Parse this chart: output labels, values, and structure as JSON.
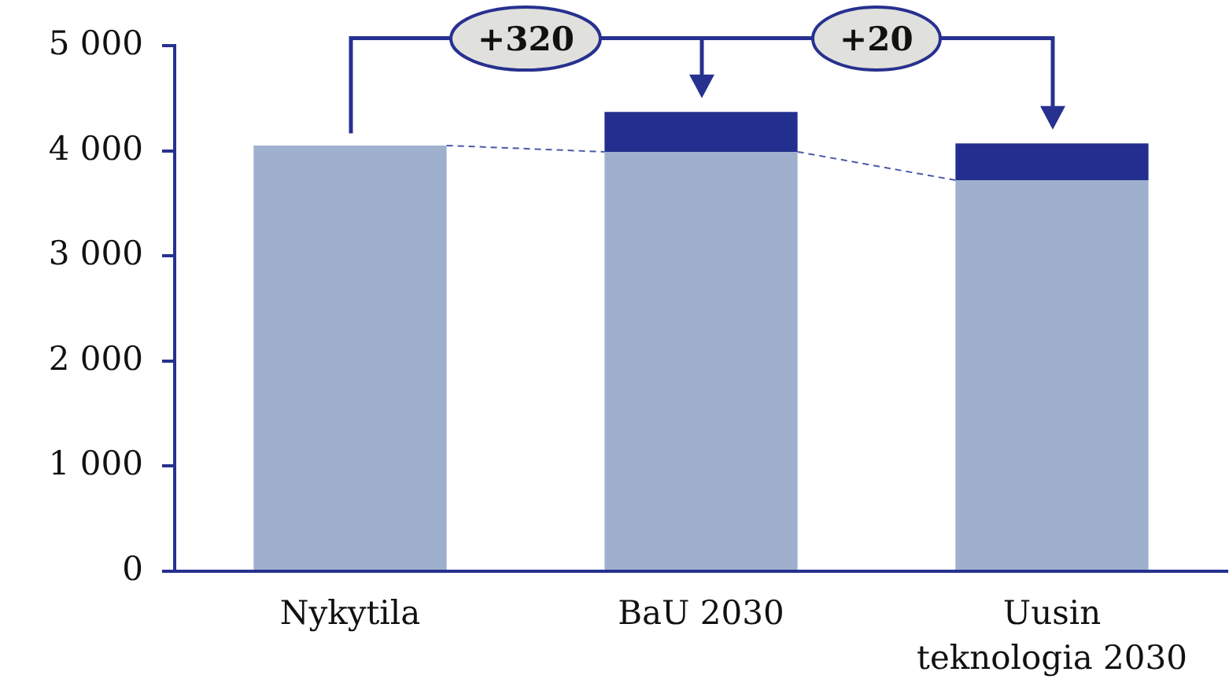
{
  "chart_data": {
    "type": "bar",
    "categories": [
      "Nykytila",
      "BaU 2030",
      "Uusin\nteknologia 2030"
    ],
    "series": [
      {
        "color": "#9eb0cd",
        "values": [
          4050,
          3990,
          3720
        ]
      },
      {
        "color": "#232f8e",
        "values": [
          null,
          380,
          350
        ]
      }
    ],
    "stacked": true,
    "ylim": [
      0,
      5000
    ],
    "yticks": [
      0,
      {
        "value": 1000,
        "label": "1 000"
      },
      {
        "value": 2000,
        "label": "2 000"
      },
      {
        "value": 3000,
        "label": "3 000"
      },
      {
        "value": 4000,
        "label": "4 000"
      },
      {
        "value": 5000,
        "label": "5 000"
      }
    ],
    "annotations": [
      "+320",
      "+20"
    ]
  }
}
